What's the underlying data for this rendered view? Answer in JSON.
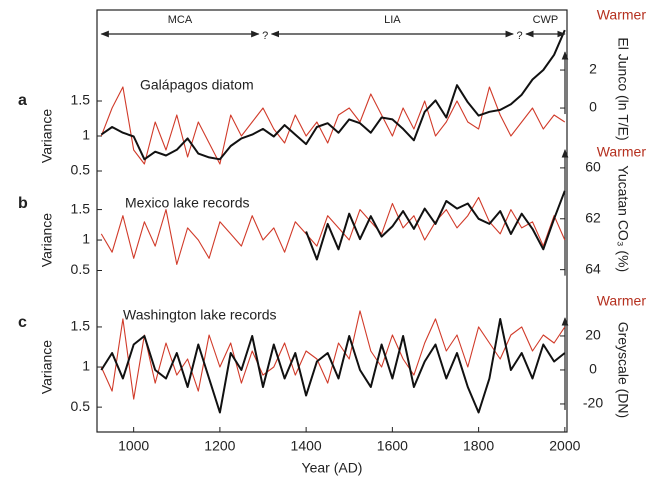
{
  "chart_data": [
    {
      "type": "line",
      "panel_label": "a",
      "title": "Galápagos diatom",
      "ylabel": "Variance",
      "y2label": "El Junco (ln T/E)",
      "direction_label": "Warmer",
      "periods": [
        {
          "label": "MCA",
          "start": 925,
          "end": 1290
        },
        {
          "label": "LIA",
          "start": 1320,
          "end": 1880
        },
        {
          "label": "CWP",
          "start": 1910,
          "end": 2000
        }
      ],
      "annotations": [
        {
          "text": "?",
          "x": 1305
        },
        {
          "text": "?",
          "x": 1895
        }
      ],
      "ylim": [
        0.3,
        2.8
      ],
      "yticks": [
        0.5,
        1.0,
        1.5
      ],
      "y2lim": [
        -4.05,
        5.16
      ],
      "y2ticks": [
        0,
        2
      ],
      "x": [
        925,
        950,
        975,
        1000,
        1025,
        1050,
        1075,
        1100,
        1125,
        1150,
        1175,
        1200,
        1225,
        1250,
        1275,
        1300,
        1325,
        1350,
        1375,
        1400,
        1425,
        1450,
        1475,
        1500,
        1525,
        1550,
        1575,
        1600,
        1625,
        1650,
        1675,
        1700,
        1725,
        1750,
        1775,
        1800,
        1825,
        1850,
        1875,
        1900,
        1925,
        1950,
        1975,
        2000
      ],
      "series": [
        {
          "name": "Variance",
          "color": "#d13b2a",
          "values": [
            1.0,
            1.4,
            1.7,
            0.8,
            0.6,
            1.2,
            0.8,
            1.3,
            0.7,
            1.2,
            0.9,
            0.6,
            1.3,
            1.0,
            1.2,
            1.4,
            1.1,
            0.9,
            1.3,
            1.0,
            1.2,
            0.9,
            1.3,
            1.4,
            1.2,
            1.6,
            1.3,
            1.0,
            1.4,
            1.1,
            1.5,
            1.0,
            1.2,
            1.5,
            1.2,
            1.1,
            1.7,
            1.3,
            1.0,
            1.2,
            1.4,
            1.1,
            1.3,
            1.2
          ]
        },
        {
          "name": "El Junco",
          "color": "#111111",
          "axis": "y2",
          "values": [
            -1.4,
            -1.0,
            -1.3,
            -1.5,
            -2.7,
            -2.3,
            -2.5,
            -2.2,
            -1.6,
            -2.4,
            -2.6,
            -2.7,
            -2.0,
            -1.6,
            -1.4,
            -1.1,
            -1.5,
            -0.9,
            -1.4,
            -1.9,
            -1.0,
            -0.8,
            -1.3,
            -0.6,
            -0.8,
            -1.3,
            -0.5,
            -0.6,
            -1.1,
            -1.7,
            -0.2,
            0.4,
            -0.5,
            1.2,
            0.3,
            -0.4,
            -0.2,
            -0.1,
            0.2,
            0.7,
            1.5,
            2.0,
            2.8,
            4.1
          ]
        }
      ]
    },
    {
      "type": "line",
      "panel_label": "b",
      "title": "Mexico lake records",
      "ylabel": "Variance",
      "y2label": "Yucatan CO₃ (%)",
      "direction_label": "Warmer",
      "ylim": [
        0.18,
        2.56
      ],
      "yticks": [
        0.5,
        1.0,
        1.5
      ],
      "y2lim": [
        64.8,
        59.1
      ],
      "y2ticks": [
        60,
        62,
        64
      ],
      "x": [
        925,
        950,
        975,
        1000,
        1025,
        1050,
        1075,
        1100,
        1125,
        1150,
        1175,
        1200,
        1225,
        1250,
        1275,
        1300,
        1325,
        1350,
        1375,
        1400,
        1425,
        1450,
        1475,
        1500,
        1525,
        1550,
        1575,
        1600,
        1625,
        1650,
        1675,
        1700,
        1725,
        1750,
        1775,
        1800,
        1825,
        1850,
        1875,
        1900,
        1925,
        1950,
        1975,
        2000
      ],
      "series": [
        {
          "name": "Variance",
          "color": "#d13b2a",
          "values": [
            1.1,
            0.8,
            1.4,
            0.7,
            1.3,
            0.9,
            1.5,
            0.6,
            1.2,
            1.0,
            0.7,
            1.3,
            1.1,
            0.9,
            1.4,
            1.0,
            1.2,
            0.8,
            1.3,
            1.1,
            0.9,
            1.4,
            1.2,
            1.0,
            1.5,
            1.3,
            1.1,
            1.6,
            1.2,
            1.4,
            1.0,
            1.3,
            1.5,
            1.2,
            1.4,
            1.7,
            1.3,
            1.1,
            1.5,
            1.2,
            1.3,
            0.9,
            1.4,
            1.0
          ]
        },
        {
          "name": "Yucatan CO₃",
          "color": "#111111",
          "axis": "y2",
          "values": [
            null,
            null,
            null,
            null,
            null,
            null,
            null,
            null,
            null,
            null,
            null,
            null,
            null,
            null,
            null,
            null,
            null,
            null,
            null,
            62.5,
            63.6,
            62.2,
            63.2,
            61.8,
            62.8,
            61.9,
            62.7,
            62.3,
            61.7,
            62.4,
            61.6,
            62.2,
            61.3,
            61.6,
            61.4,
            62.0,
            62.2,
            61.7,
            62.6,
            61.8,
            62.4,
            63.2,
            62.0,
            60.9
          ]
        }
      ]
    },
    {
      "type": "line",
      "panel_label": "c",
      "title": "Washington lake records",
      "ylabel": "Variance",
      "y2label": "Greyscale (DN)",
      "direction_label": "Warmer",
      "xlabel": "Year (AD)",
      "xlim": [
        915,
        2005
      ],
      "xticks": [
        1000,
        1200,
        1400,
        1600,
        1800,
        2000
      ],
      "ylim": [
        0.19,
        2.21
      ],
      "yticks": [
        0.5,
        1.0,
        1.5
      ],
      "y2lim": [
        -36.5,
        58.8
      ],
      "y2ticks": [
        -20,
        0,
        20
      ],
      "x": [
        925,
        950,
        975,
        1000,
        1025,
        1050,
        1075,
        1100,
        1125,
        1150,
        1175,
        1200,
        1225,
        1250,
        1275,
        1300,
        1325,
        1350,
        1375,
        1400,
        1425,
        1450,
        1475,
        1500,
        1525,
        1550,
        1575,
        1600,
        1625,
        1650,
        1675,
        1700,
        1725,
        1750,
        1775,
        1800,
        1825,
        1850,
        1875,
        1900,
        1925,
        1950,
        1975,
        2000
      ],
      "series": [
        {
          "name": "Variance",
          "color": "#d13b2a",
          "values": [
            1.0,
            0.7,
            1.6,
            0.6,
            1.4,
            0.8,
            1.3,
            0.9,
            1.1,
            0.7,
            1.4,
            1.0,
            1.3,
            0.8,
            1.2,
            0.9,
            1.0,
            1.3,
            0.9,
            1.2,
            1.1,
            0.8,
            1.3,
            1.1,
            1.7,
            1.2,
            1.0,
            1.4,
            1.1,
            0.9,
            1.3,
            1.6,
            1.2,
            1.4,
            1.0,
            1.5,
            1.3,
            1.1,
            1.4,
            1.5,
            1.2,
            1.4,
            1.3,
            1.5
          ]
        },
        {
          "name": "Greyscale",
          "color": "#111111",
          "axis": "y2",
          "values": [
            0,
            10,
            -5,
            15,
            20,
            0,
            -5,
            10,
            -10,
            15,
            -5,
            -25,
            10,
            0,
            20,
            -10,
            15,
            -5,
            10,
            -15,
            5,
            10,
            -5,
            20,
            0,
            -10,
            15,
            -5,
            20,
            -10,
            5,
            15,
            -5,
            10,
            -10,
            -25,
            -5,
            30,
            0,
            10,
            -5,
            15,
            5,
            10
          ]
        }
      ]
    }
  ]
}
